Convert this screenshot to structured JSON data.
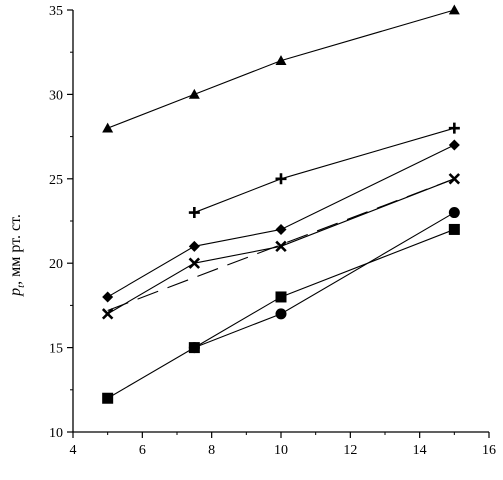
{
  "chart_data": {
    "type": "line",
    "xlim": [
      4,
      16
    ],
    "ylim": [
      10,
      35
    ],
    "xticks": [
      "4",
      "6",
      "8",
      "10",
      "12",
      "14",
      "16"
    ],
    "yticks": [
      "10",
      "15",
      "20",
      "25",
      "30",
      "35"
    ],
    "ylabel_symbol": "p",
    "ylabel_subscript": "t",
    "ylabel_units": ", мм рт. ст.",
    "grid": false,
    "series": [
      {
        "marker": "triangle",
        "points": [
          [
            5,
            28
          ],
          [
            7.5,
            30
          ],
          [
            10,
            32
          ],
          [
            15,
            35
          ]
        ]
      },
      {
        "marker": "plus",
        "points": [
          [
            7.5,
            23
          ],
          [
            10,
            25
          ],
          [
            15,
            28
          ]
        ]
      },
      {
        "marker": "diamond",
        "points": [
          [
            5,
            18
          ],
          [
            7.5,
            21
          ],
          [
            10,
            22
          ],
          [
            15,
            27
          ]
        ]
      },
      {
        "marker": "cross",
        "points": [
          [
            5,
            17
          ],
          [
            7.5,
            20
          ],
          [
            10,
            21
          ],
          [
            15,
            25
          ]
        ]
      },
      {
        "marker": "none",
        "dashed": true,
        "points": [
          [
            5,
            17.2
          ],
          [
            15,
            25
          ]
        ]
      },
      {
        "marker": "circle",
        "points": [
          [
            7.5,
            15
          ],
          [
            10,
            17
          ],
          [
            15,
            23
          ]
        ]
      },
      {
        "marker": "square",
        "points": [
          [
            5,
            12
          ],
          [
            7.5,
            15
          ],
          [
            10,
            18
          ],
          [
            15,
            22
          ]
        ]
      }
    ]
  }
}
